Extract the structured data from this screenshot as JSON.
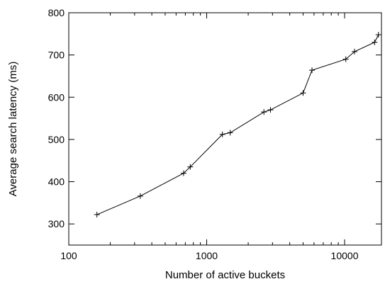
{
  "chart_data": {
    "type": "line",
    "xlabel": "Number of active buckets",
    "ylabel": "Average search latency (ms)",
    "x_scale": "log",
    "xlim": [
      100,
      18500
    ],
    "ylim": [
      250,
      800
    ],
    "x_ticks": [
      100,
      1000,
      10000
    ],
    "x_tick_labels": [
      "100",
      "1000",
      "10000"
    ],
    "y_ticks": [
      300,
      400,
      500,
      600,
      700,
      800
    ],
    "y_tick_labels": [
      "300",
      "400",
      "500",
      "600",
      "700",
      "800"
    ],
    "grid": false,
    "marker": "plus",
    "line_color": "#000000",
    "series": [
      {
        "x": [
          160,
          330,
          680,
          760,
          1300,
          1480,
          2600,
          2900,
          5000,
          5800,
          10200,
          11800,
          16500,
          17600
        ],
        "y": [
          322,
          366,
          420,
          435,
          512,
          516,
          565,
          570,
          610,
          664,
          690,
          708,
          730,
          748
        ]
      }
    ]
  }
}
